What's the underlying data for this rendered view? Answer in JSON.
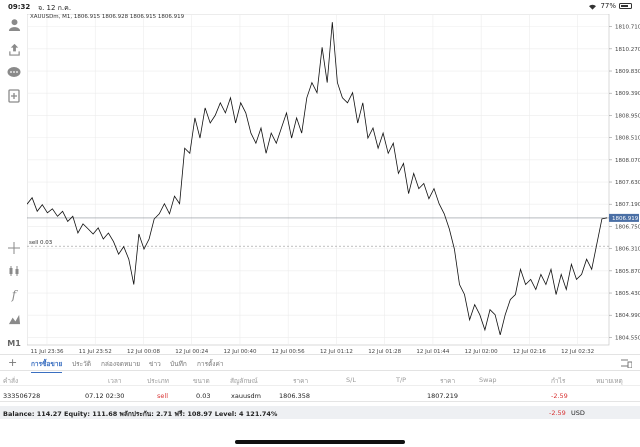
{
  "status": {
    "time": "09:32",
    "date": "จ. 12 ก.ค.",
    "battery": "77%",
    "battery_level": 0.77
  },
  "chart_header": {
    "symbol_text": "XAUUSDm, M1, 1806.915 1806.928 1806.915 1806.919"
  },
  "chart_data": {
    "type": "line",
    "y_ticks": [
      "1810.710",
      "1810.270",
      "1809.830",
      "1809.390",
      "1808.950",
      "1808.510",
      "1808.070",
      "1807.630",
      "1807.190",
      "1806.750",
      "1806.310",
      "1805.870",
      "1805.430",
      "1804.990",
      "1804.550"
    ],
    "x_ticks": [
      "11 Jul 23:36",
      "11 Jul 23:52",
      "12 Jul 00:08",
      "12 Jul 00:24",
      "12 Jul 00:40",
      "12 Jul 00:56",
      "12 Jul 01:12",
      "12 Jul 01:28",
      "12 Jul 01:44",
      "12 Jul 02:00",
      "12 Jul 02:16",
      "12 Jul 02:32"
    ],
    "ylim": [
      1804.4,
      1810.96
    ],
    "current_price": "1806.919",
    "current_value": 1806.919,
    "order_line": {
      "label": "sell 0.03",
      "value": 1806.358
    },
    "series": [
      {
        "values": [
          1807.19,
          1807.32,
          1807.05,
          1807.18,
          1807.02,
          1807.1,
          1806.95,
          1807.05,
          1806.85,
          1806.95,
          1806.62,
          1806.8,
          1806.7,
          1806.6,
          1806.72,
          1806.5,
          1806.62,
          1806.45,
          1806.2,
          1806.35,
          1806.1,
          1805.6,
          1806.6,
          1806.3,
          1806.5,
          1806.9,
          1807.0,
          1807.2,
          1807.0,
          1807.35,
          1807.2,
          1808.3,
          1808.2,
          1808.9,
          1808.5,
          1809.1,
          1808.8,
          1808.95,
          1809.2,
          1809.0,
          1809.3,
          1808.8,
          1809.2,
          1809.0,
          1808.6,
          1808.4,
          1808.7,
          1808.2,
          1808.6,
          1808.4,
          1808.7,
          1809.0,
          1808.5,
          1808.9,
          1808.6,
          1809.3,
          1809.6,
          1809.4,
          1810.3,
          1809.6,
          1810.8,
          1809.6,
          1809.3,
          1809.2,
          1809.4,
          1808.8,
          1809.2,
          1808.5,
          1808.7,
          1808.3,
          1808.6,
          1808.2,
          1808.4,
          1807.8,
          1808.0,
          1807.4,
          1807.8,
          1807.5,
          1807.6,
          1807.3,
          1807.5,
          1807.2,
          1807.0,
          1806.7,
          1806.3,
          1805.6,
          1805.4,
          1804.9,
          1805.2,
          1805.0,
          1804.7,
          1805.1,
          1805.0,
          1804.6,
          1805.0,
          1805.3,
          1805.4,
          1805.9,
          1805.6,
          1805.7,
          1805.5,
          1805.8,
          1805.6,
          1805.9,
          1805.4,
          1805.8,
          1805.5,
          1806.0,
          1805.7,
          1805.8,
          1806.1,
          1805.9,
          1806.4,
          1806.9,
          1806.92
        ]
      }
    ]
  },
  "sidebar": {
    "items": [
      "person-icon",
      "share-icon",
      "chat-icon",
      "document-icon",
      "crosshair-icon",
      "candle-icon",
      "indicator-icon",
      "objects-icon",
      "timeframe"
    ],
    "timeframe": "M1",
    "indicator_glyph": "f"
  },
  "tabs": [
    "การซื้อขาย",
    "ประวัติ",
    "กล่องจดหมาย",
    "ข่าว",
    "บันทึก",
    "การตั้งค่า"
  ],
  "active_tab": 0,
  "columns": [
    "คำสั่ง",
    "เวลา",
    "ประเภท",
    "ขนาด",
    "สัญลักษณ์",
    "ราคา",
    "S/L",
    "T/P",
    "ราคา",
    "Swap",
    "กำไร",
    "หมายเหตุ"
  ],
  "order": {
    "ticket": "333506728",
    "time": "07.12 02:30",
    "type": "sell",
    "size": "0.03",
    "symbol": "xauusdm",
    "open_price": "1806.358",
    "price": "1807.219",
    "profit": "-2.59"
  },
  "balance": {
    "text": "Balance: 114.27 Equity: 111.68 พลักประกัน: 2.71 ฟรี: 108.97 Level: 4 121.74%",
    "profit": "-2.59",
    "currency": "USD"
  }
}
